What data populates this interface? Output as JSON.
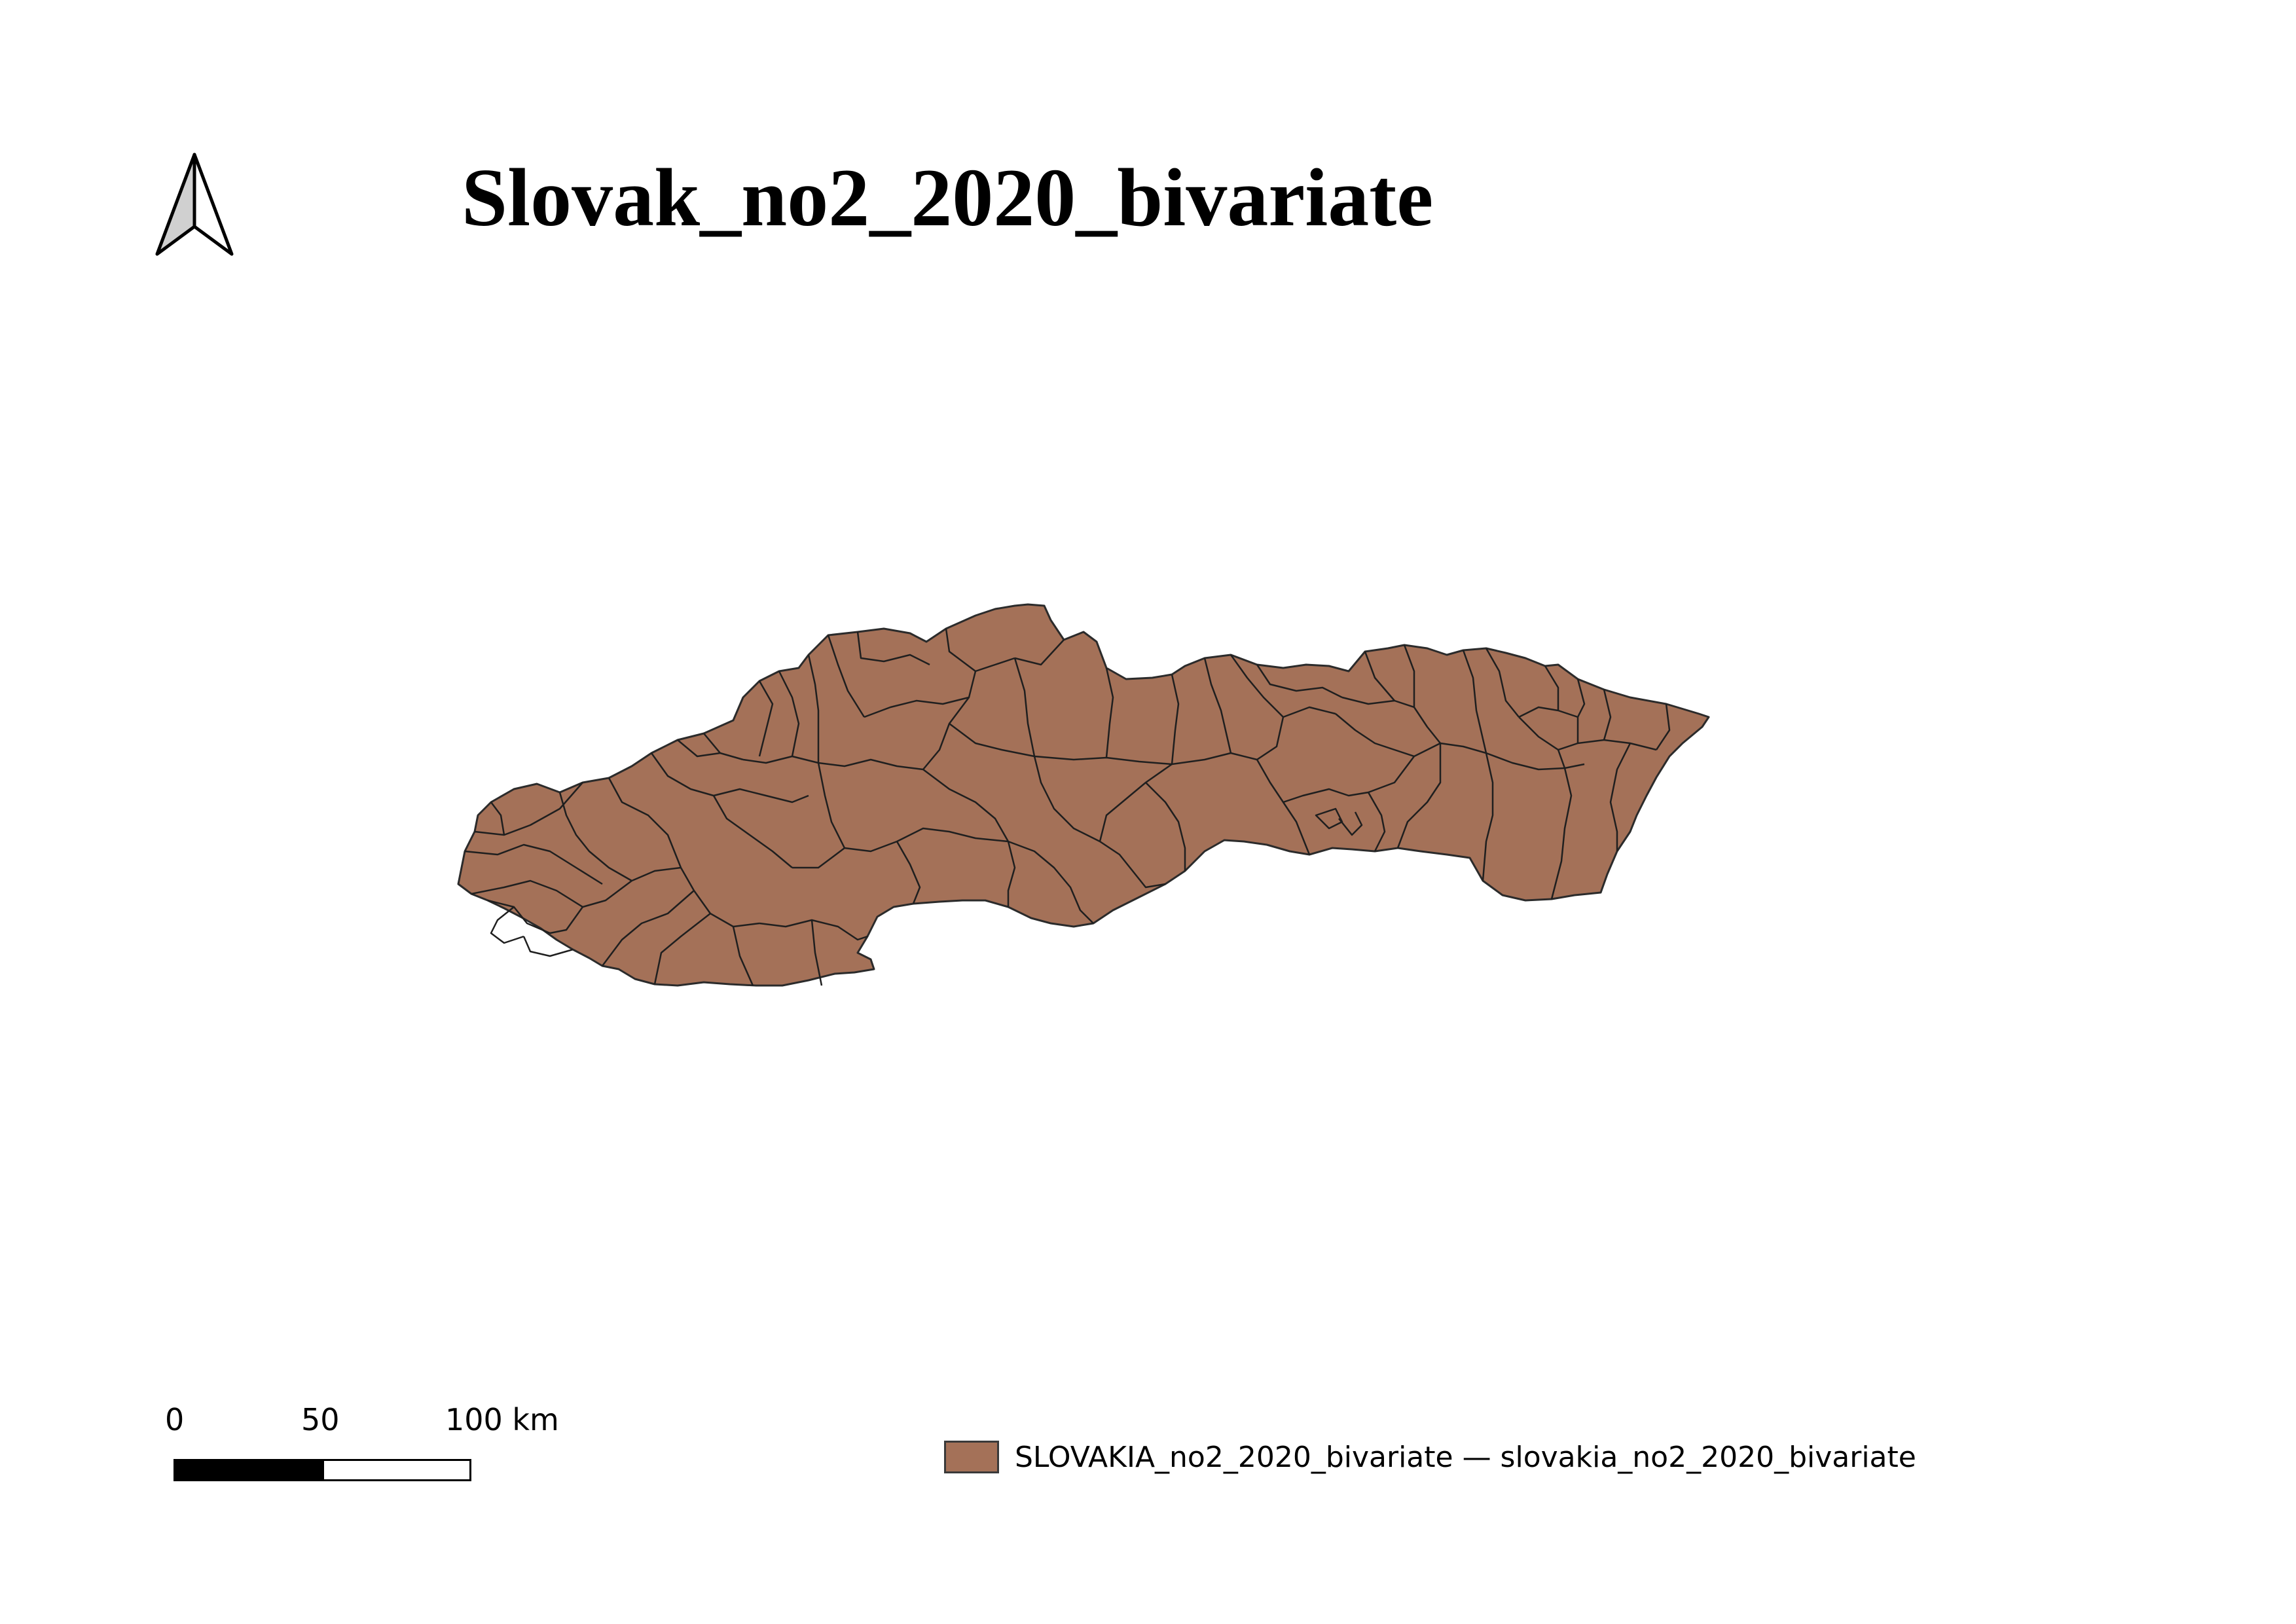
{
  "title": "Slovak_no2_2020_bivariate",
  "north_arrow": {
    "icon": "north-arrow-icon"
  },
  "map": {
    "country": "Slovakia",
    "fill_color": "#a47158",
    "border_color": "#2b2b2b"
  },
  "scalebar": {
    "ticks": [
      "0",
      "50",
      "100 km"
    ],
    "fill_color": "#000000",
    "empty_color": "#ffffff"
  },
  "legend": {
    "items": [
      {
        "label": "SLOVAKIA_no2_2020_bivariate — slovakia_no2_2020_bivariate",
        "color": "#a47158"
      }
    ]
  }
}
